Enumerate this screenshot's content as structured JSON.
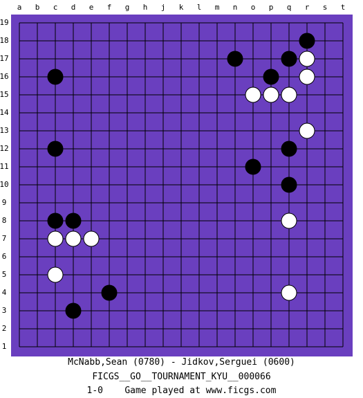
{
  "board": {
    "size": 19,
    "colors": {
      "background": "#6a3fbf",
      "grid": "#000000",
      "black_stone": "#000000",
      "white_stone": "#ffffff"
    },
    "columns": [
      "a",
      "b",
      "c",
      "d",
      "e",
      "f",
      "g",
      "h",
      "j",
      "k",
      "l",
      "m",
      "n",
      "o",
      "p",
      "q",
      "r",
      "s",
      "t"
    ],
    "rows": [
      "19",
      "18",
      "17",
      "16",
      "15",
      "14",
      "13",
      "12",
      "11",
      "10",
      "9",
      "8",
      "7",
      "6",
      "5",
      "4",
      "3",
      "2",
      "1"
    ],
    "black_stones": [
      "r18",
      "n17",
      "q17",
      "c16",
      "p16",
      "c12",
      "q12",
      "o11",
      "q10",
      "c8",
      "d8",
      "f4",
      "d3"
    ],
    "white_stones": [
      "r17",
      "r16",
      "o15",
      "p15",
      "q15",
      "r13",
      "q8",
      "c7",
      "d7",
      "e7",
      "c5",
      "q4"
    ]
  },
  "footer": {
    "players": "McNabb,Sean (0780) - Jidkov,Serguei (0600)",
    "tournament": "FICGS__GO__TOURNAMENT_KYU__000066",
    "result_line": "1-0    Game played at www.ficgs.com"
  }
}
